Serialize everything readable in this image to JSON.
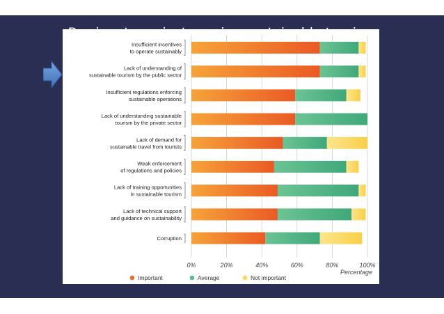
{
  "slide": {
    "title": "Barriers to mainstreaming sustainable tourism",
    "background": "#2a2e52",
    "pointer_arrow_icon": "arrow-right-icon"
  },
  "chart_data": {
    "type": "bar",
    "orientation": "horizontal",
    "stacked": true,
    "title": "",
    "xlabel": "Percentage",
    "ylabel": "",
    "xlim": [
      0,
      100
    ],
    "x_tick_labels": [
      "0%",
      "20%",
      "40%",
      "60%",
      "80%",
      "100%"
    ],
    "grid": true,
    "legend_position": "bottom",
    "categories": [
      [
        "Insufficient incentives",
        "to operate sustainably"
      ],
      [
        "Lack of understanding of",
        "sustainable tourism by the public sector"
      ],
      [
        "Insufficient regulations enforcing",
        "sustainable operations"
      ],
      [
        "Lack of understanding sustainable",
        "tourism by the private sector"
      ],
      [
        "Lack of demand for",
        "sustainable travel from tourists"
      ],
      [
        "Weak enforcement",
        "of regulations and policies"
      ],
      [
        "Lack of training opportunities",
        "in sustainable tourism"
      ],
      [
        "Lack of technical support",
        "and guidance on sustainability"
      ],
      [
        "Corruption"
      ]
    ],
    "series": [
      {
        "name": "Important",
        "color": "#ee6e2b",
        "values": [
          73,
          73,
          59,
          59,
          52,
          47,
          49,
          49,
          42
        ]
      },
      {
        "name": "Average",
        "color": "#5dba8a",
        "values": [
          22,
          22,
          29,
          41,
          25,
          41,
          46,
          42,
          31
        ]
      },
      {
        "name": "Not important",
        "color": "#fbd75a",
        "values": [
          4,
          4,
          8,
          0,
          23,
          7,
          4,
          8,
          24
        ]
      }
    ]
  }
}
